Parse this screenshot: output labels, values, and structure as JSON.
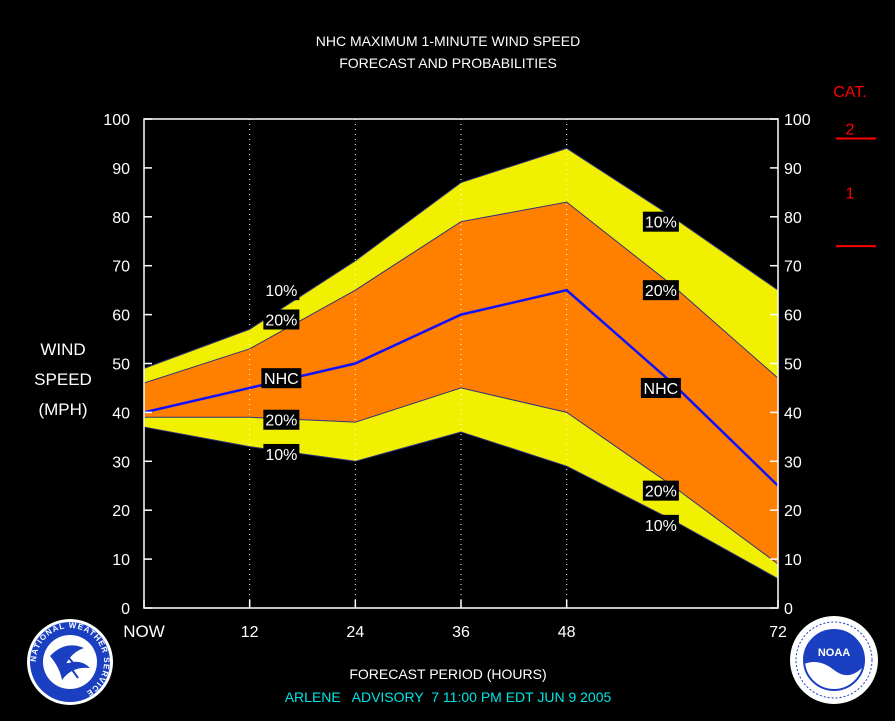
{
  "chart_data": {
    "type": "area",
    "title_line1": "NHC MAXIMUM 1-MINUTE WIND SPEED",
    "title_line2": "FORECAST AND PROBABILITIES",
    "xlabel": "FORECAST PERIOD (HOURS)",
    "ylabel_lines": [
      "WIND",
      "SPEED",
      "(MPH)"
    ],
    "advisory": "ARLENE   ADVISORY  7 11:00 PM EDT JUN 9 2005",
    "category_title": "CAT.",
    "categories": [
      {
        "label": "2"
      },
      {
        "label": "1"
      }
    ],
    "category_thresholds_mph": [
      96,
      74
    ],
    "ylim": [
      0,
      100
    ],
    "xlim": [
      0,
      72
    ],
    "yticks": [
      0,
      10,
      20,
      30,
      40,
      50,
      60,
      70,
      80,
      90,
      100
    ],
    "xticks": [
      {
        "value": 0,
        "label": "NOW"
      },
      {
        "value": 12,
        "label": "12"
      },
      {
        "value": 24,
        "label": "24"
      },
      {
        "value": 36,
        "label": "36"
      },
      {
        "value": 48,
        "label": "48"
      },
      {
        "value": 72,
        "label": "72"
      }
    ],
    "grid_vertical_dotted": [
      12,
      24,
      36,
      48
    ],
    "x": [
      0,
      12,
      24,
      36,
      48,
      60,
      72
    ],
    "series": [
      {
        "name": "10%",
        "role": "upper_10",
        "values": [
          49,
          57,
          71,
          87,
          94,
          80,
          65
        ]
      },
      {
        "name": "20%",
        "role": "upper_20",
        "values": [
          46,
          53,
          65,
          79,
          83,
          66,
          47
        ]
      },
      {
        "name": "NHC",
        "role": "nhc",
        "values": [
          40,
          45,
          50,
          60,
          65,
          46,
          25
        ]
      },
      {
        "name": "20%",
        "role": "lower_20",
        "values": [
          39,
          39,
          38,
          45,
          40,
          25,
          9
        ]
      },
      {
        "name": "10%",
        "role": "lower_10",
        "values": [
          37,
          33,
          30,
          36,
          29,
          18,
          6
        ]
      }
    ],
    "series_labels": [
      {
        "text": "10%",
        "x": 15.6,
        "y": 65
      },
      {
        "text": "20%",
        "x": 15.6,
        "y": 59
      },
      {
        "text": "NHC",
        "x": 15.6,
        "y": 47
      },
      {
        "text": "20%",
        "x": 15.6,
        "y": 38.5
      },
      {
        "text": "10%",
        "x": 15.6,
        "y": 31.5
      },
      {
        "text": "10%",
        "x": 58.7,
        "y": 79
      },
      {
        "text": "20%",
        "x": 58.7,
        "y": 65
      },
      {
        "text": "NHC",
        "x": 58.7,
        "y": 45
      },
      {
        "text": "20%",
        "x": 58.7,
        "y": 24
      },
      {
        "text": "10%",
        "x": 58.7,
        "y": 17
      }
    ],
    "colors": {
      "outer_band": "#f0f000",
      "inner_band": "#ff8000",
      "nhc_line": "#1010ff",
      "band_edge": "#303080",
      "text": "#ffffff",
      "category": "#ff0000",
      "advisory": "#00e5e5"
    }
  },
  "logos": {
    "left": {
      "name": "national-weather-service-logo",
      "text": "NATIONAL WEATHER SERVICE"
    },
    "right": {
      "name": "noaa-logo",
      "text": "NOAA"
    }
  }
}
